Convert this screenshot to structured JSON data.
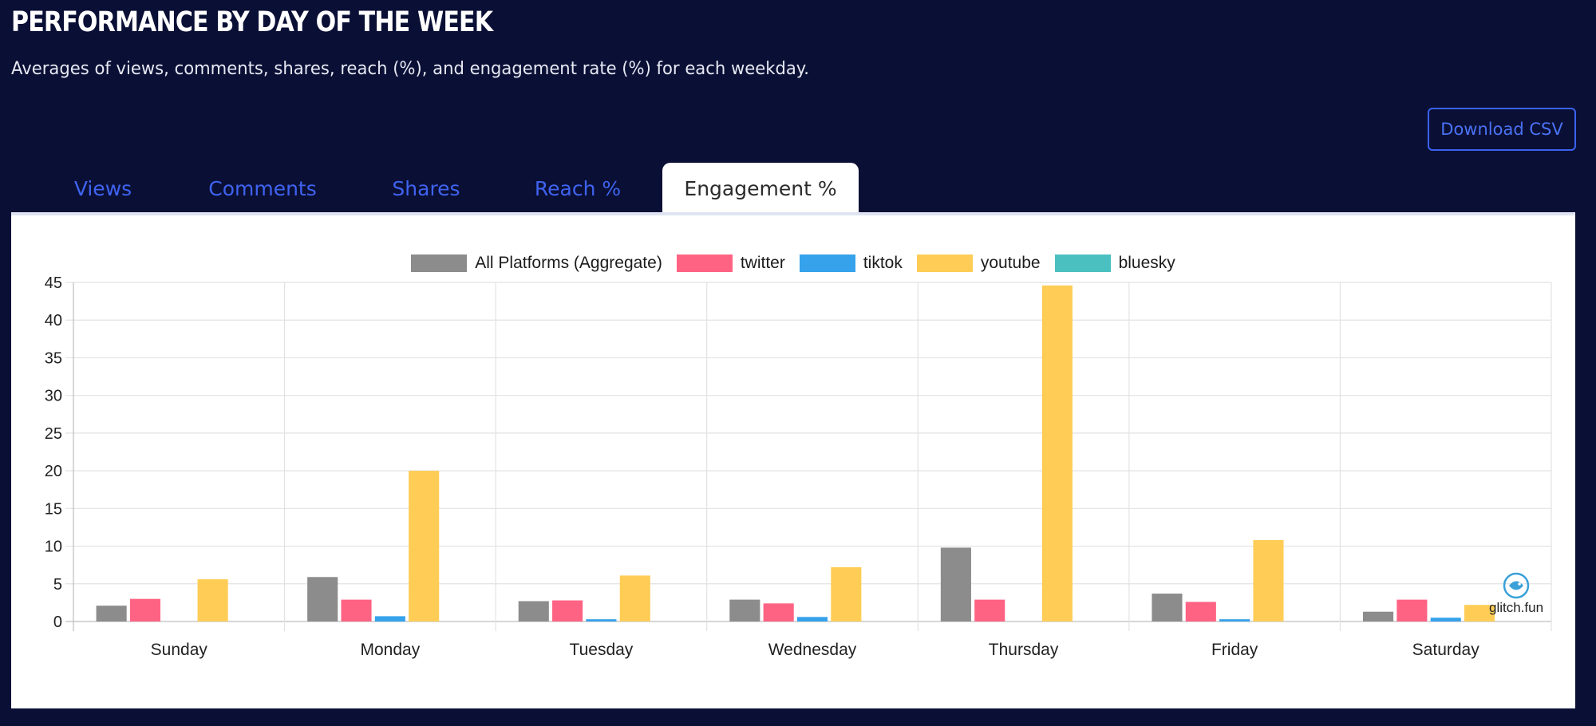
{
  "header": {
    "title": "PERFORMANCE BY DAY OF THE WEEK",
    "subtitle": "Averages of views, comments, shares, reach (%), and engagement rate (%) for each weekday.",
    "download_label": "Download CSV"
  },
  "tabs": [
    {
      "label": "Views",
      "active": false
    },
    {
      "label": "Comments",
      "active": false
    },
    {
      "label": "Shares",
      "active": false
    },
    {
      "label": "Reach %",
      "active": false
    },
    {
      "label": "Engagement %",
      "active": true
    }
  ],
  "colors": {
    "background": "#0a0f35",
    "accent": "#3f63f0"
  },
  "watermark": {
    "text": "glitch.fun",
    "icon": "fish-icon"
  },
  "chart_data": {
    "type": "bar",
    "title": "",
    "xlabel": "",
    "ylabel": "",
    "ylim": [
      0,
      45
    ],
    "yticks": [
      0,
      5,
      10,
      15,
      20,
      25,
      30,
      35,
      40,
      45
    ],
    "grid": true,
    "legend_position": "top-center",
    "categories": [
      "Sunday",
      "Monday",
      "Tuesday",
      "Wednesday",
      "Thursday",
      "Friday",
      "Saturday"
    ],
    "series": [
      {
        "name": "All Platforms (Aggregate)",
        "color": "#8c8c8c",
        "values": [
          2.1,
          5.9,
          2.7,
          2.9,
          9.8,
          3.7,
          1.3
        ]
      },
      {
        "name": "twitter",
        "color": "#ff6384",
        "values": [
          3.0,
          2.9,
          2.8,
          2.4,
          2.9,
          2.6,
          2.9
        ]
      },
      {
        "name": "tiktok",
        "color": "#36a2eb",
        "values": [
          0,
          0.7,
          0.3,
          0.6,
          0,
          0.3,
          0.5
        ]
      },
      {
        "name": "youtube",
        "color": "#ffcd56",
        "values": [
          5.6,
          20.0,
          6.1,
          7.2,
          44.6,
          10.8,
          2.2
        ]
      },
      {
        "name": "bluesky",
        "color": "#4bc0c0",
        "values": [
          0,
          0,
          0,
          0,
          0,
          0,
          0
        ]
      }
    ]
  }
}
